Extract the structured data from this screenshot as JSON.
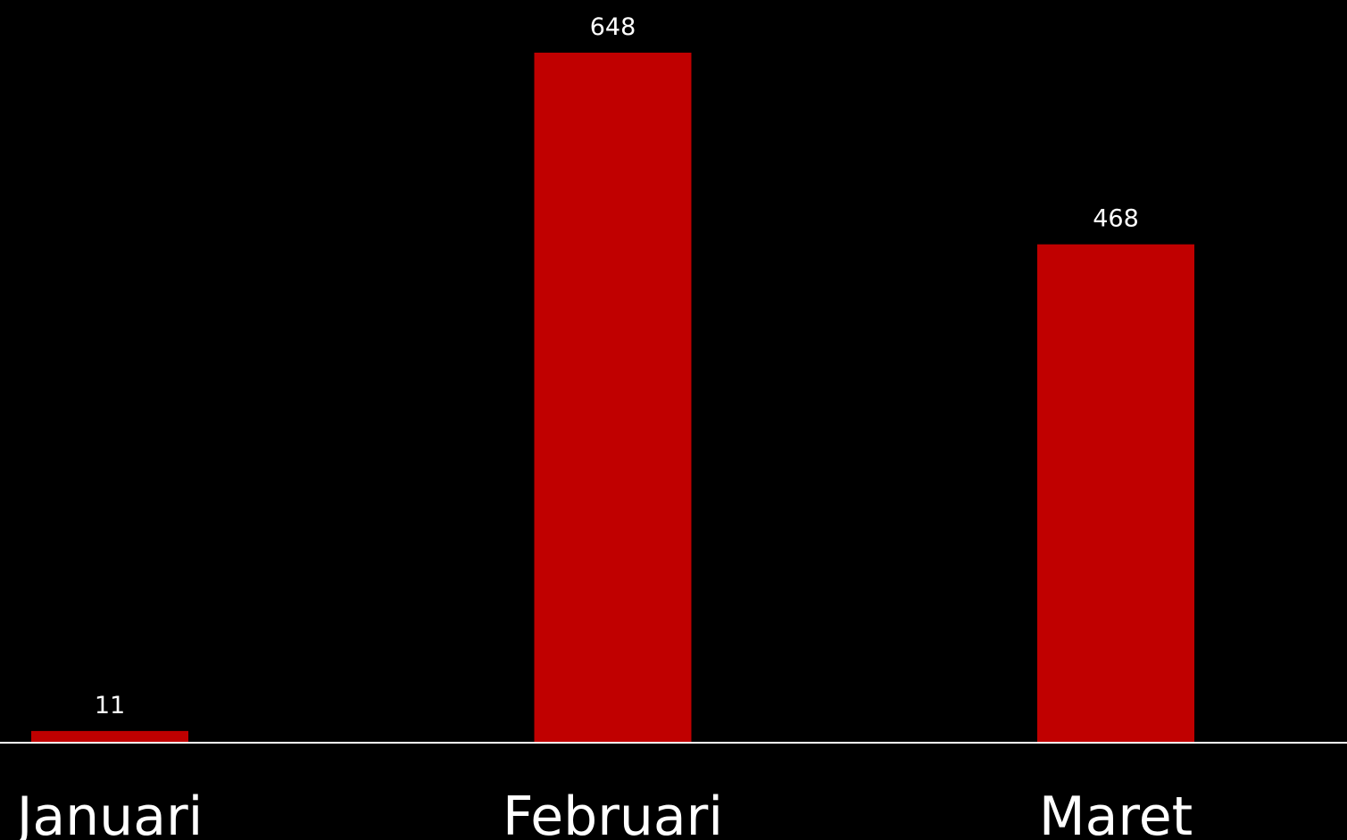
{
  "chart_data": {
    "type": "bar",
    "categories": [
      "Januari",
      "Februari",
      "Maret"
    ],
    "values": [
      11,
      648,
      468
    ],
    "color": "#c00000"
  }
}
